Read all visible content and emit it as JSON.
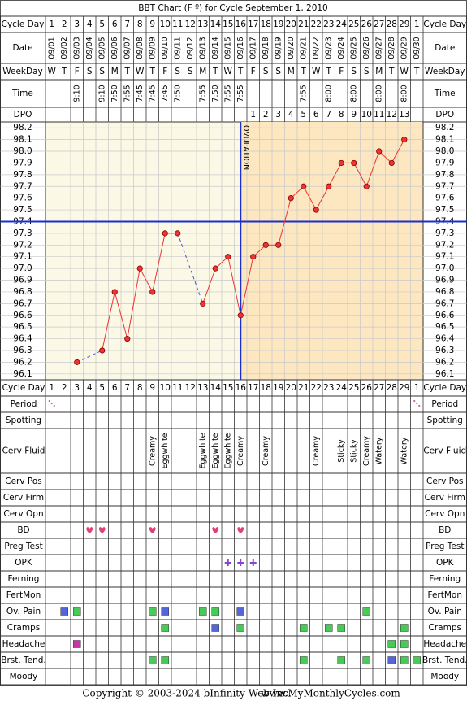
{
  "chart_data": {
    "type": "line",
    "title": "BBT Chart (F º) for Cycle September 1, 2010",
    "top_rows": [
      "Cycle Day",
      "Date",
      "WeekDay",
      "Time",
      "DPO"
    ],
    "bottom_rows": [
      "Cycle Day",
      "Period",
      "Spotting",
      "Cerv Fluid",
      "Cerv Pos",
      "Cerv Firm",
      "Cerv Opn",
      "BD",
      "Preg Test",
      "OPK",
      "Ferning",
      "FertMon",
      "Ov. Pain",
      "Cramps",
      "Headache",
      "Brst. Tend.",
      "Moody"
    ],
    "cycle_days": [
      1,
      2,
      3,
      4,
      5,
      6,
      7,
      8,
      9,
      10,
      11,
      12,
      13,
      14,
      15,
      16,
      17,
      18,
      19,
      20,
      21,
      22,
      23,
      24,
      25,
      26,
      27,
      28,
      29,
      1
    ],
    "dates": [
      "09/01",
      "09/02",
      "09/03",
      "09/04",
      "09/05",
      "09/06",
      "09/07",
      "09/08",
      "09/09",
      "09/10",
      "09/11",
      "09/12",
      "09/13",
      "09/14",
      "09/15",
      "09/16",
      "09/17",
      "09/18",
      "09/19",
      "09/20",
      "09/21",
      "09/22",
      "09/23",
      "09/24",
      "09/25",
      "09/26",
      "09/27",
      "09/28",
      "09/29",
      "09/30"
    ],
    "weekdays": [
      "W",
      "T",
      "F",
      "S",
      "S",
      "M",
      "T",
      "W",
      "T",
      "F",
      "S",
      "S",
      "M",
      "T",
      "W",
      "T",
      "F",
      "S",
      "S",
      "M",
      "T",
      "W",
      "T",
      "F",
      "S",
      "S",
      "M",
      "T",
      "W",
      "T"
    ],
    "times": [
      null,
      null,
      "9:10",
      null,
      "9:10",
      "7:50",
      "7:55",
      "7:45",
      "7:45",
      "7:45",
      "7:50",
      null,
      "7:55",
      "7:50",
      "7:55",
      "7:55",
      null,
      null,
      null,
      null,
      "7:55",
      null,
      "8:00",
      null,
      "8:00",
      null,
      "8:00",
      null,
      "8:00",
      null
    ],
    "dpo": [
      null,
      null,
      null,
      null,
      null,
      null,
      null,
      null,
      null,
      null,
      null,
      null,
      null,
      null,
      null,
      null,
      1,
      2,
      3,
      4,
      5,
      6,
      7,
      8,
      9,
      10,
      11,
      12,
      13,
      null
    ],
    "values": [
      null,
      null,
      96.2,
      null,
      96.3,
      96.8,
      96.4,
      97.0,
      96.8,
      97.3,
      97.3,
      null,
      96.7,
      97.0,
      97.1,
      96.6,
      97.1,
      97.2,
      97.2,
      97.6,
      97.7,
      97.5,
      97.7,
      97.9,
      97.9,
      97.7,
      98.0,
      97.9,
      98.1,
      null
    ],
    "color": "#ee3333",
    "ylim": [
      96.05,
      98.25
    ],
    "yticks": [
      98.2,
      98.1,
      {
        "value": 98.0,
        "label": "98.0"
      },
      97.9,
      97.8,
      97.7,
      97.6,
      97.5,
      97.4,
      97.3,
      97.2,
      97.1,
      {
        "value": 97.0,
        "label": "97.0"
      },
      96.9,
      96.8,
      96.7,
      96.6,
      96.5,
      96.4,
      96.3,
      96.2,
      96.1
    ],
    "grid": true,
    "coverline": 97.4,
    "ovulation_cycle_day": 16,
    "ovulation_label": "OVULATION",
    "cervical_fluid": [
      null,
      null,
      null,
      null,
      null,
      null,
      null,
      null,
      "Creamy",
      "Eggwhite",
      null,
      null,
      "Eggwhite",
      "Eggwhite",
      "Eggwhite",
      "Creamy",
      null,
      "Creamy",
      null,
      null,
      null,
      "Creamy",
      null,
      "Sticky",
      "Sticky",
      "Creamy",
      "Watery",
      null,
      "Watery",
      null
    ],
    "footer": [
      "Copyright © 2003-2024 bInfinity Web Inc.",
      "www.MyMonthlyCycles.com"
    ]
  }
}
